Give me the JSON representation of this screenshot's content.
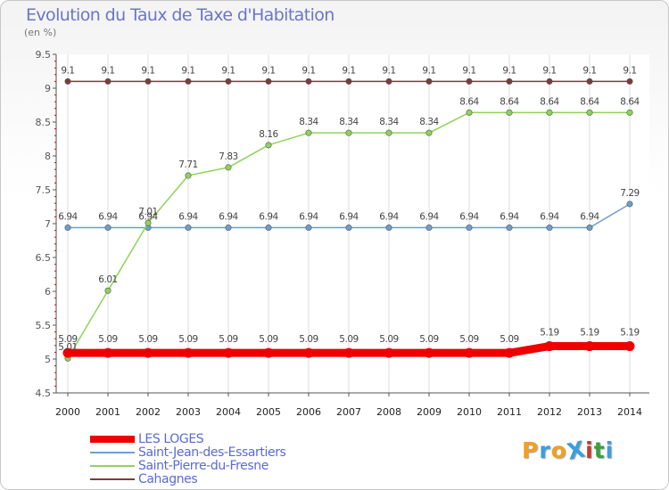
{
  "title": "Evolution du Taux de Taxe d'Habitation",
  "subtitle": "(en %)",
  "logo": {
    "text": "ProXiti",
    "colors": [
      "#f0a020",
      "#3a9ee0",
      "#f0a020",
      "#3a9ee0",
      "#c33a2a",
      "#3aa040",
      "#3a9ee0"
    ]
  },
  "chart_data": {
    "type": "line",
    "x": [
      "2000",
      "2001",
      "2002",
      "2003",
      "2004",
      "2005",
      "2006",
      "2007",
      "2008",
      "2009",
      "2010",
      "2011",
      "2012",
      "2013",
      "2014"
    ],
    "ylim": [
      4.5,
      9.5
    ],
    "yticks": [
      "4.5",
      "5",
      "5.5",
      "6",
      "6.5",
      "7",
      "7.5",
      "8",
      "8.5",
      "9",
      "9.5"
    ],
    "grid": "vertical",
    "legend_position": "bottom-left",
    "series": [
      {
        "name": "LES LOGES",
        "color": "#ee0000",
        "values": [
          5.09,
          5.09,
          5.09,
          5.09,
          5.09,
          5.09,
          5.09,
          5.09,
          5.09,
          5.09,
          5.09,
          5.09,
          5.19,
          5.19,
          5.19
        ],
        "labels": [
          "5.09",
          "5.09",
          "5.09",
          "5.09",
          "5.09",
          "5.09",
          "5.09",
          "5.09",
          "5.09",
          "5.09",
          "5.09",
          "5.09",
          "5.19",
          "5.19",
          "5.19"
        ]
      },
      {
        "name": "Saint-Jean-des-Essartiers",
        "color": "#6d9fcb",
        "values": [
          6.94,
          6.94,
          6.94,
          6.94,
          6.94,
          6.94,
          6.94,
          6.94,
          6.94,
          6.94,
          6.94,
          6.94,
          6.94,
          6.94,
          7.29
        ],
        "labels": [
          "6.94",
          "6.94",
          "6.94",
          "6.94",
          "6.94",
          "6.94",
          "6.94",
          "6.94",
          "6.94",
          "6.94",
          "6.94",
          "6.94",
          "6.94",
          "6.94",
          "7.29"
        ]
      },
      {
        "name": "Saint-Pierre-du-Fresne",
        "color": "#8fd35a",
        "values": [
          5.01,
          6.01,
          7.01,
          7.71,
          7.83,
          8.16,
          8.34,
          8.34,
          8.34,
          8.34,
          8.64,
          8.64,
          8.64,
          8.64,
          8.64
        ],
        "labels": [
          "5.01",
          "6.01",
          "7.01",
          "7.71",
          "7.83",
          "8.16",
          "8.34",
          "8.34",
          "8.34",
          "8.34",
          "8.64",
          "8.64",
          "8.64",
          "8.64",
          "8.64"
        ]
      },
      {
        "name": "Cahagnes",
        "color": "#7a3d3d",
        "values": [
          9.1,
          9.1,
          9.1,
          9.1,
          9.1,
          9.1,
          9.1,
          9.1,
          9.1,
          9.1,
          9.1,
          9.1,
          9.1,
          9.1,
          9.1
        ],
        "labels": [
          "9.1",
          "9.1",
          "9.1",
          "9.1",
          "9.1",
          "9.1",
          "9.1",
          "9.1",
          "9.1",
          "9.1",
          "9.1",
          "9.1",
          "9.1",
          "9.1",
          "9.1"
        ]
      }
    ]
  }
}
